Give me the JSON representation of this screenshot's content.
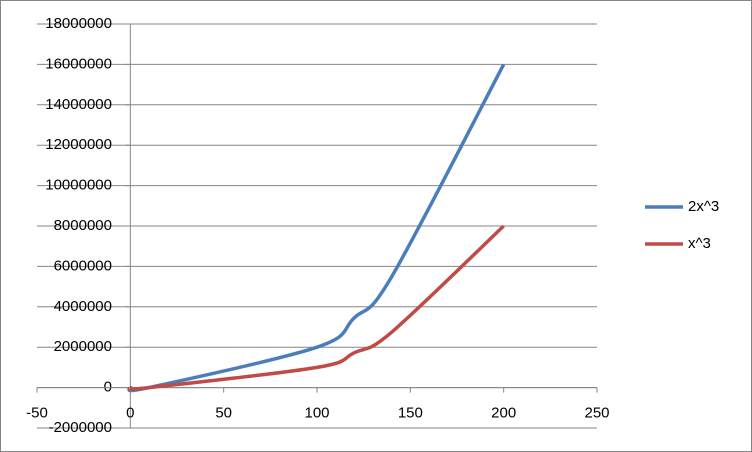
{
  "chart_data": {
    "type": "scatter",
    "smooth": true,
    "x": [
      0,
      10,
      100,
      120,
      140,
      200
    ],
    "series": [
      {
        "name": "2x^3",
        "color": "#4a7ebb",
        "values": [
          0,
          2000,
          2000000,
          3456000,
          5488000,
          16000000
        ]
      },
      {
        "name": "x^3",
        "color": "#be4b48",
        "values": [
          0,
          1000,
          1000000,
          1728000,
          2744000,
          8000000
        ]
      }
    ],
    "xlim": [
      -50,
      250
    ],
    "xticks": [
      -50,
      0,
      50,
      100,
      150,
      200,
      250
    ],
    "ylim": [
      -2000000,
      18000000
    ],
    "yticks": [
      -2000000,
      0,
      2000000,
      4000000,
      6000000,
      8000000,
      10000000,
      12000000,
      14000000,
      16000000,
      18000000
    ],
    "grid": true,
    "legend": "right"
  }
}
